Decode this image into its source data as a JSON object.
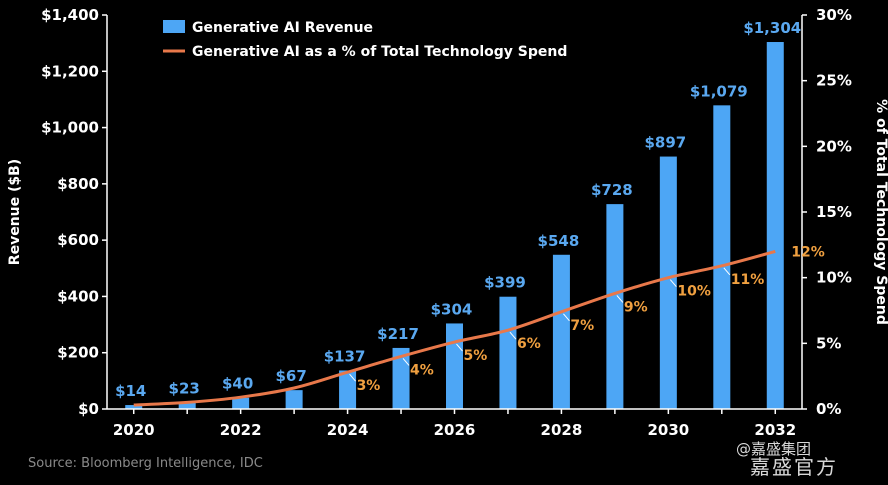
{
  "chart_data": {
    "type": "bar+line",
    "x": [
      2020,
      2021,
      2022,
      2023,
      2024,
      2025,
      2026,
      2027,
      2028,
      2029,
      2030,
      2031,
      2032
    ],
    "x_tick_labels": [
      "2020",
      "2022",
      "2024",
      "2026",
      "2028",
      "2030",
      "2032"
    ],
    "series": [
      {
        "name": "Generative AI Revenue",
        "kind": "bar",
        "axis": "left",
        "color": "#4da6f5",
        "values": [
          14,
          23,
          40,
          67,
          137,
          217,
          304,
          399,
          548,
          728,
          897,
          1079,
          1304
        ],
        "labels": [
          "$14",
          "$23",
          "$40",
          "$67",
          "$137",
          "$217",
          "$304",
          "$399",
          "$548",
          "$728",
          "$897",
          "$1,079",
          "$1,304"
        ]
      },
      {
        "name": "Generative AI as a % of Total Technology Spend",
        "kind": "line",
        "axis": "right",
        "color": "#e8784a",
        "values": [
          0.3,
          0.5,
          0.9,
          1.6,
          2.8,
          4.0,
          5.1,
          6.0,
          7.4,
          8.8,
          10.0,
          10.9,
          12.0
        ],
        "labels": [
          "",
          "",
          "",
          "",
          "3%",
          "4%",
          "5%",
          "6%",
          "7%",
          "9%",
          "10%",
          "11%",
          "12%"
        ]
      }
    ],
    "y_left": {
      "title": "Revenue ($B)",
      "range": [
        0,
        1400
      ],
      "ticks": [
        0,
        200,
        400,
        600,
        800,
        1000,
        1200,
        1400
      ],
      "tick_labels": [
        "$0",
        "$200",
        "$400",
        "$600",
        "$800",
        "$1,000",
        "$1,200",
        "$1,400"
      ]
    },
    "y_right": {
      "title": "% of Total Technology Spend",
      "range": [
        0,
        30
      ],
      "ticks": [
        0,
        5,
        10,
        15,
        20,
        25,
        30
      ],
      "tick_labels": [
        "0%",
        "5%",
        "10%",
        "15%",
        "20%",
        "25%",
        "30%"
      ]
    },
    "legend_position": "top-left",
    "grid": false
  },
  "source": "Source: Bloomberg Intelligence, IDC",
  "watermark": {
    "line1": "@嘉盛集团",
    "line2": "嘉盛官方"
  },
  "colors": {
    "background": "#000000",
    "bar": "#4da6f5",
    "bar_label": "#5aa8f0",
    "line": "#e8784a",
    "line_label": "#f0a040"
  }
}
